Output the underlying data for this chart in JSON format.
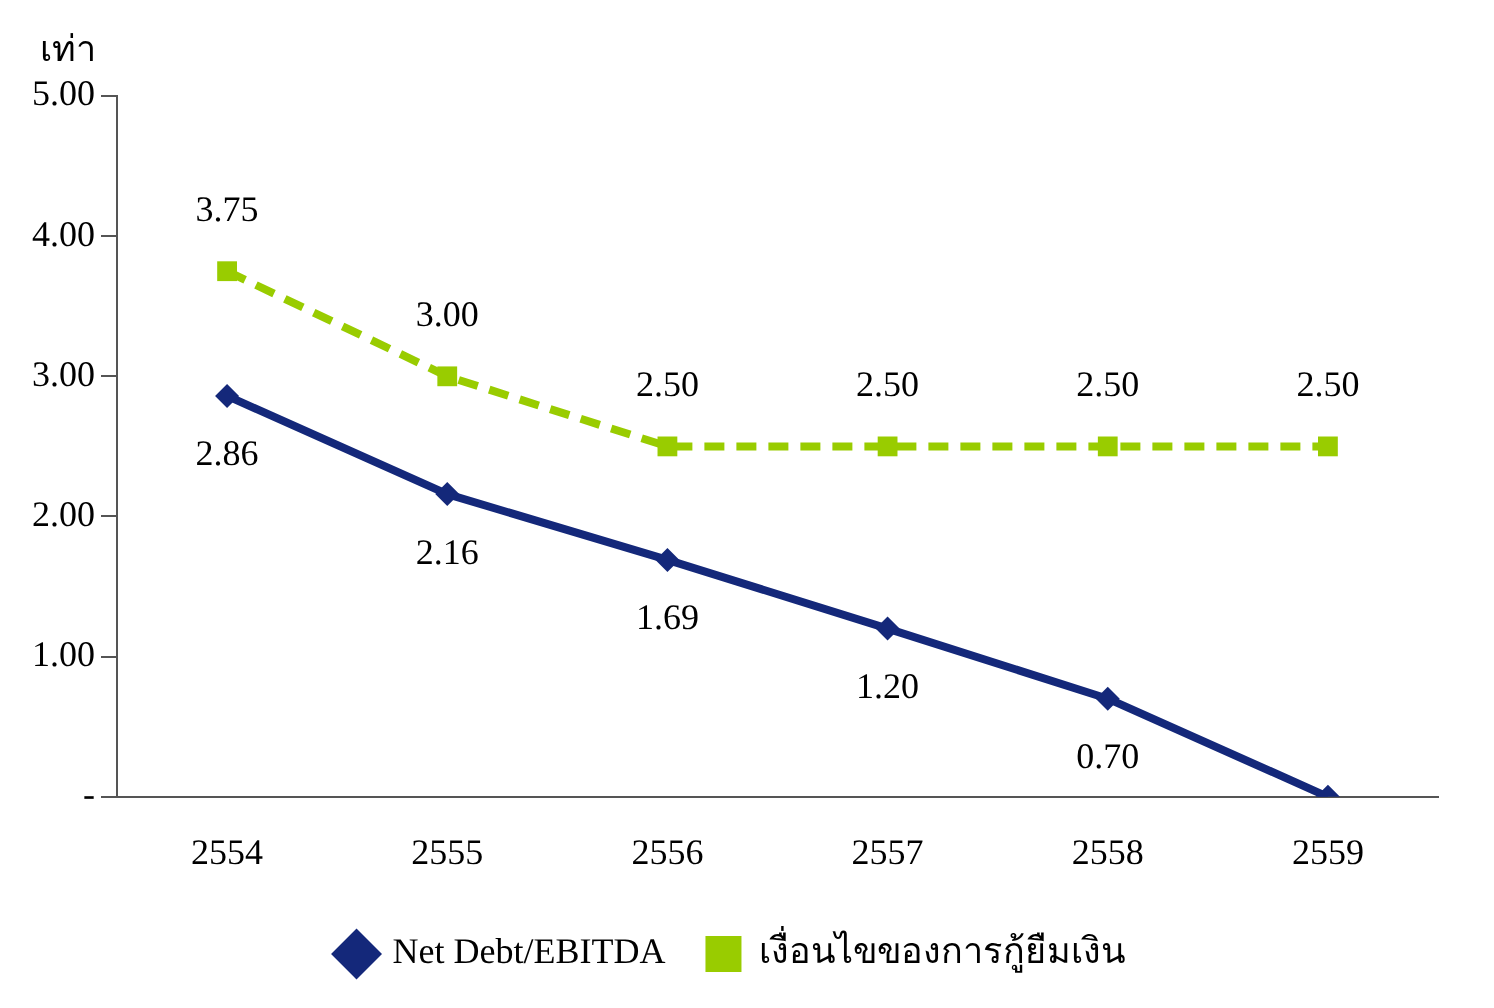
{
  "chart_data": {
    "type": "line",
    "ylabel": "เท่า",
    "categories": [
      "2554",
      "2555",
      "2556",
      "2557",
      "2558",
      "2559"
    ],
    "series": [
      {
        "name": "Net Debt/EBITDA",
        "color": "#14287a",
        "values": [
          2.86,
          2.16,
          1.69,
          1.2,
          0.7,
          0
        ],
        "value_labels": [
          "2.86",
          "2.16",
          "1.69",
          "1.20",
          "0.70",
          null
        ],
        "marker": "diamond",
        "line_style": "solid"
      },
      {
        "name": "เงื่อนไขของการกู้ยืมเงิน",
        "color": "#99cc00",
        "values": [
          3.75,
          3.0,
          2.5,
          2.5,
          2.5,
          2.5
        ],
        "value_labels": [
          "3.75",
          "3.00",
          "2.50",
          "2.50",
          "2.50",
          "2.50"
        ],
        "marker": "square",
        "line_style": "dashed"
      }
    ],
    "ylim": [
      0,
      5
    ],
    "yticks": [
      {
        "value": 0,
        "label": "-"
      },
      {
        "value": 1,
        "label": "1.00"
      },
      {
        "value": 2,
        "label": "2.00"
      },
      {
        "value": 3,
        "label": "3.00"
      },
      {
        "value": 4,
        "label": "4.00"
      },
      {
        "value": 5,
        "label": "5.00"
      }
    ],
    "legend": "bottom"
  }
}
